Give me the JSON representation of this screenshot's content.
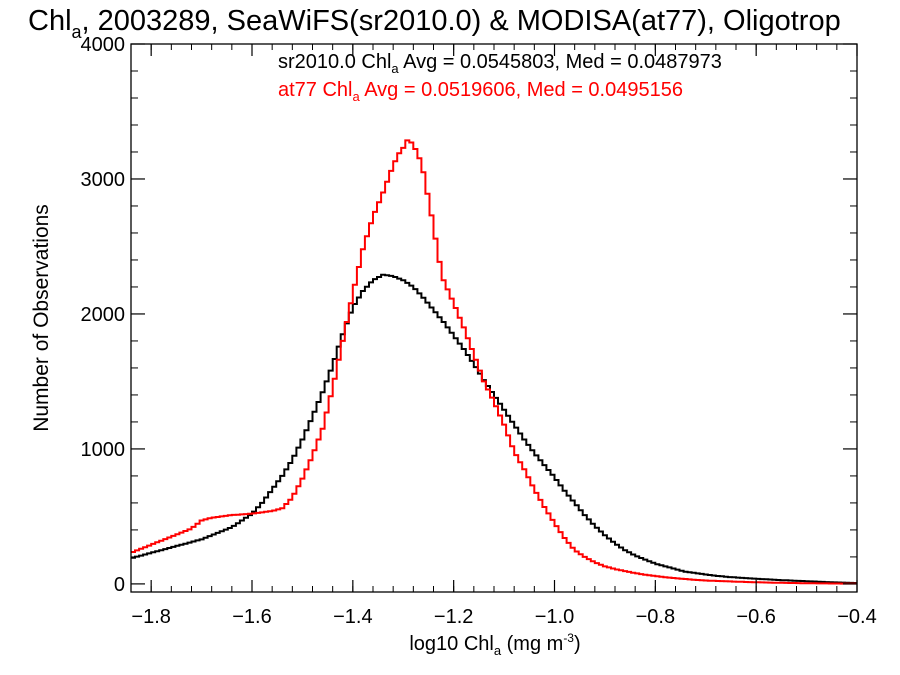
{
  "chart_data": {
    "type": "line",
    "title": {
      "prefix": "Chl",
      "sub": "a",
      "rest": ", 2003289, SeaWiFS(sr2010.0) & MODISA(at77), Oligotrop"
    },
    "xlabel": {
      "prefix": "log10 Chl",
      "sub": "a",
      "mid": " (mg m",
      "sup": "-3",
      "suffix": ")"
    },
    "ylabel": "Number of Observations",
    "xlim": [
      -1.84,
      -0.4
    ],
    "ylim": [
      -60,
      4000
    ],
    "xticks": [
      "-1.8",
      "-1.6",
      "-1.4",
      "-1.2",
      "-1.0",
      "-0.8",
      "-0.6",
      "-0.4"
    ],
    "xtick_values": [
      -1.8,
      -1.6,
      -1.4,
      -1.2,
      -1.0,
      -0.8,
      -0.6,
      -0.4
    ],
    "yticks": [
      "0",
      "1000",
      "2000",
      "3000",
      "4000"
    ],
    "ytick_values": [
      0,
      1000,
      2000,
      3000,
      4000
    ],
    "legend": [
      {
        "color": "#000000",
        "prefix": "sr2010.0 Chl",
        "sub": "a",
        "rest": " Avg = 0.0545803, Med = 0.0487973"
      },
      {
        "color": "#ff0000",
        "prefix": "at77 Chl",
        "sub": "a",
        "rest": " Avg = 0.0519606, Med = 0.0495156"
      }
    ],
    "series": [
      {
        "color": "#000000",
        "x": [
          -1.84,
          -1.8,
          -1.76,
          -1.72,
          -1.7,
          -1.68,
          -1.64,
          -1.6,
          -1.58,
          -1.56,
          -1.54,
          -1.52,
          -1.5,
          -1.48,
          -1.46,
          -1.44,
          -1.42,
          -1.4,
          -1.38,
          -1.36,
          -1.34,
          -1.32,
          -1.3,
          -1.28,
          -1.26,
          -1.24,
          -1.22,
          -1.2,
          -1.18,
          -1.16,
          -1.14,
          -1.12,
          -1.1,
          -1.08,
          -1.06,
          -1.04,
          -1.02,
          -1.0,
          -0.98,
          -0.96,
          -0.94,
          -0.92,
          -0.9,
          -0.88,
          -0.86,
          -0.84,
          -0.82,
          -0.8,
          -0.78,
          -0.76,
          -0.74,
          -0.72,
          -0.7,
          -0.68,
          -0.65,
          -0.6,
          -0.55,
          -0.5,
          -0.45,
          -0.4
        ],
        "y": [
          190,
          230,
          270,
          310,
          330,
          360,
          420,
          520,
          600,
          700,
          800,
          920,
          1070,
          1240,
          1420,
          1620,
          1850,
          2050,
          2170,
          2250,
          2290,
          2280,
          2250,
          2200,
          2120,
          2030,
          1940,
          1840,
          1740,
          1630,
          1510,
          1400,
          1290,
          1180,
          1070,
          970,
          880,
          790,
          690,
          600,
          510,
          430,
          360,
          300,
          250,
          210,
          180,
          150,
          130,
          110,
          90,
          80,
          70,
          60,
          50,
          38,
          28,
          20,
          12,
          6
        ]
      },
      {
        "color": "#ff0000",
        "x": [
          -1.84,
          -1.8,
          -1.76,
          -1.72,
          -1.7,
          -1.68,
          -1.64,
          -1.6,
          -1.58,
          -1.56,
          -1.54,
          -1.52,
          -1.5,
          -1.48,
          -1.46,
          -1.44,
          -1.42,
          -1.4,
          -1.38,
          -1.36,
          -1.34,
          -1.32,
          -1.31,
          -1.3,
          -1.29,
          -1.28,
          -1.27,
          -1.26,
          -1.25,
          -1.24,
          -1.23,
          -1.22,
          -1.2,
          -1.18,
          -1.16,
          -1.14,
          -1.12,
          -1.1,
          -1.08,
          -1.06,
          -1.04,
          -1.02,
          -1.0,
          -0.98,
          -0.96,
          -0.94,
          -0.92,
          -0.9,
          -0.88,
          -0.86,
          -0.84,
          -0.82,
          -0.8,
          -0.78,
          -0.76,
          -0.74,
          -0.72,
          -0.7,
          -0.65,
          -0.6,
          -0.55,
          -0.5,
          -0.45,
          -0.4
        ],
        "y": [
          230,
          290,
          350,
          410,
          470,
          490,
          510,
          520,
          530,
          540,
          560,
          640,
          780,
          950,
          1150,
          1450,
          1800,
          2150,
          2480,
          2720,
          2900,
          3100,
          3180,
          3230,
          3300,
          3250,
          3180,
          3050,
          2850,
          2650,
          2420,
          2250,
          2080,
          1900,
          1700,
          1500,
          1350,
          1180,
          980,
          850,
          700,
          570,
          450,
          340,
          250,
          200,
          160,
          130,
          110,
          95,
          80,
          68,
          58,
          50,
          42,
          36,
          30,
          25,
          18,
          12,
          8,
          5,
          3,
          2
        ]
      }
    ]
  }
}
